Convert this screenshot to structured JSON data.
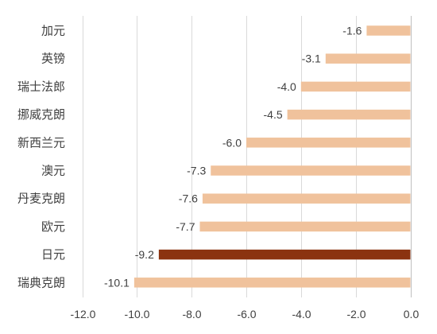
{
  "chart_data": {
    "type": "bar",
    "orientation": "horizontal",
    "categories": [
      "加元",
      "英镑",
      "瑞士法郎",
      "挪威克朗",
      "新西兰元",
      "澳元",
      "丹麦克朗",
      "欧元",
      "日元",
      "瑞典克朗"
    ],
    "values": [
      -1.6,
      -3.1,
      -4.0,
      -4.5,
      -6.0,
      -7.3,
      -7.6,
      -7.7,
      -9.2,
      -10.1
    ],
    "value_labels": [
      "-1.6",
      "-3.1",
      "-4.0",
      "-4.5",
      "-6.0",
      "-7.3",
      "-7.6",
      "-7.7",
      "-9.2",
      "-10.1"
    ],
    "xlim": [
      -12.0,
      0.0
    ],
    "x_ticks": [
      -12.0,
      -10.0,
      -8.0,
      -6.0,
      -4.0,
      -2.0,
      0.0
    ],
    "x_tick_labels": [
      "-12.0",
      "-10.0",
      "-8.0",
      "-6.0",
      "-4.0",
      "-2.0",
      "0.0"
    ],
    "grid": true,
    "legend": false,
    "title": "",
    "xlabel": "",
    "ylabel": "",
    "colors": {
      "default": "#f0c29c",
      "highlight": "#8b3310"
    },
    "highlight_category": "日元"
  }
}
